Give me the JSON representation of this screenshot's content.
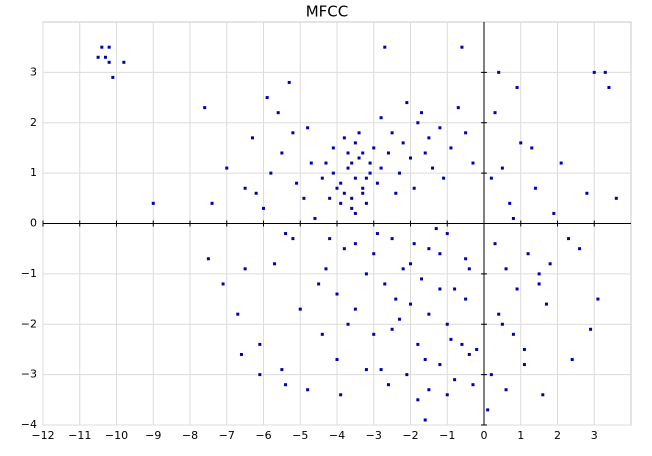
{
  "chart_data": {
    "type": "scatter",
    "title": "MFCC",
    "color": "#0000b0",
    "grid": true,
    "xlim": [
      -12,
      4
    ],
    "ylim": [
      -4,
      4
    ],
    "xticks": [
      {
        "value": -12,
        "label": "−12"
      },
      {
        "value": -11,
        "label": "−11"
      },
      {
        "value": -10,
        "label": "−10"
      },
      {
        "value": -9,
        "label": "−9"
      },
      {
        "value": -8,
        "label": "−8"
      },
      {
        "value": -7,
        "label": "−7"
      },
      {
        "value": -6,
        "label": "−6"
      },
      {
        "value": -5,
        "label": "−5"
      },
      {
        "value": -4,
        "label": "−4"
      },
      {
        "value": -3,
        "label": "−3"
      },
      {
        "value": -2,
        "label": "−2"
      },
      {
        "value": -1,
        "label": "−1"
      },
      0,
      1,
      2,
      3
    ],
    "yticks": [
      {
        "value": -4,
        "label": "−4"
      },
      {
        "value": -3,
        "label": "−3"
      },
      {
        "value": -2,
        "label": "−2"
      },
      {
        "value": -1,
        "label": "−1"
      },
      0,
      1,
      2,
      3
    ],
    "x": [
      -10.4,
      -10.2,
      -10.3,
      -10.5,
      -10.2,
      -10.1,
      -9.8,
      -9,
      -7.6,
      -7.4,
      -7,
      -6.5,
      -7.5,
      -7.1,
      -6.7,
      -6.1,
      -6.5,
      -5.4,
      -4.8,
      3.3,
      3,
      3.4,
      3.6,
      3.1,
      2.9,
      2.4,
      1.6,
      -1.6,
      0.1,
      -2.7,
      -0.6,
      -3.5,
      -3.7,
      -3.3,
      -3.9,
      -3.1,
      -3.6,
      -4.1,
      -3.4,
      -3.8,
      -3.2,
      -4.3,
      -3,
      -3.5,
      -3.9,
      -3.3,
      -4,
      -3.6,
      -2.9,
      -4.2,
      -3.4,
      -3.7,
      -3.1,
      -4.4,
      -2.8,
      -3.5,
      -3.8,
      -3.2,
      -4.1,
      -3.6,
      -3.3,
      -2.5,
      -2.2,
      -1.8,
      -1.5,
      -1.2,
      -2,
      -2.6,
      -1.7,
      -2.3,
      -1.4,
      -0.9,
      -0.5,
      -2.8,
      -1.1,
      -1.9,
      -0.7,
      -2.4,
      -1.6,
      -0.3,
      -2.1,
      -5.5,
      -5.8,
      -5.2,
      -4.9,
      -6,
      -5.6,
      -4.7,
      -5.1,
      -6.3,
      -5.4,
      -4.6,
      -5.9,
      -4.8,
      -6.2,
      -5.3,
      -3.5,
      -3,
      -2.5,
      -2,
      -1.5,
      -1,
      -0.5,
      -3.2,
      -2.7,
      -2.2,
      -1.7,
      -1.2,
      -0.8,
      -3.8,
      -4.2,
      -2.9,
      -1.9,
      -1.3,
      -2.4,
      -0.4,
      -2,
      -1.5,
      -1,
      -0.5,
      -2.5,
      -3,
      -1.8,
      -1.2,
      -0.2,
      -2.3,
      -3.5,
      -4,
      -1.6,
      -0.9,
      -2.8,
      -1.2,
      -0.8,
      -0.4,
      -1.5,
      -2.1,
      -0.6,
      -1.8,
      -2.6,
      -3.2,
      -1,
      -0.3,
      -3.9,
      0.3,
      0.6,
      0.9,
      1.2,
      1.5,
      0.4,
      0.8,
      1.1,
      0.2,
      0.7,
      1.4,
      1.9,
      2.3,
      0.5,
      1,
      1.7,
      0.3,
      0.9,
      1.3,
      2.1,
      0.6,
      0.4,
      1.8,
      2.6,
      0.2,
      1.1,
      0.8,
      1.5,
      2.8,
      0.5,
      -4.5,
      -5,
      -4.4,
      -5.7,
      -4,
      -6.6,
      -5.2,
      -4.3,
      -3.7,
      -6.1,
      -5.5
    ],
    "y": [
      3.5,
      3.5,
      3.3,
      3.3,
      3.2,
      2.9,
      3.2,
      0.4,
      2.3,
      0.4,
      1.1,
      0.7,
      -0.7,
      -1.2,
      -1.8,
      -3,
      -0.9,
      -3.2,
      -3.3,
      3,
      3,
      2.7,
      0.5,
      -1.5,
      -2.1,
      -2.7,
      -3.4,
      -3.9,
      -3.7,
      3.5,
      3.5,
      0.9,
      1.1,
      0.7,
      0.8,
      1.2,
      0.5,
      1,
      1.3,
      0.6,
      0.9,
      1.2,
      1.5,
      1.6,
      0.4,
      1.4,
      0.7,
      0.3,
      0.8,
      0.5,
      1.8,
      1.4,
      1,
      0.9,
      1.1,
      0.2,
      1.7,
      0.4,
      1.5,
      1.2,
      0.6,
      1.8,
      1.6,
      2,
      1.7,
      1.9,
      1.3,
      1.4,
      2.2,
      1,
      1.1,
      1.5,
      1.8,
      2.1,
      0.9,
      0.7,
      2.3,
      0.6,
      1.4,
      1.2,
      2.4,
      1.4,
      1,
      1.8,
      0.5,
      0.3,
      2.2,
      1.2,
      0.8,
      1.7,
      -0.2,
      0.1,
      2.5,
      1.9,
      0.6,
      2.8,
      -0.4,
      -0.6,
      -0.3,
      -0.8,
      -0.5,
      -0.2,
      -0.7,
      -1,
      -1.2,
      -0.9,
      -1.1,
      -0.6,
      -1.3,
      -0.5,
      -0.3,
      -0.2,
      -0.4,
      -0.1,
      -1.5,
      -0.9,
      -1.6,
      -1.8,
      -2,
      -1.5,
      -2.1,
      -2.2,
      -2.4,
      -1.3,
      -2.5,
      -1.9,
      -1.7,
      -1.4,
      -2.7,
      -2.3,
      -2.9,
      -2.8,
      -3.1,
      -2.6,
      -3.3,
      -3,
      -2.4,
      -3.5,
      -3.2,
      -2.9,
      -3.4,
      -3.2,
      -3.4,
      -0.4,
      -0.9,
      -1.3,
      -0.6,
      -1,
      -1.8,
      -2.2,
      -2.5,
      -3,
      0.4,
      0.7,
      0.2,
      -0.3,
      1.1,
      1.6,
      -1.6,
      2.2,
      2.7,
      1.5,
      1.2,
      -3.3,
      3,
      -0.8,
      -0.5,
      0.9,
      -2.8,
      0.1,
      -1.2,
      0.6,
      -2,
      -1.2,
      -1.7,
      -2.2,
      -0.8,
      -2.7,
      -2.6,
      -0.3,
      -0.9,
      -2,
      -2.4,
      -2.9
    ]
  }
}
